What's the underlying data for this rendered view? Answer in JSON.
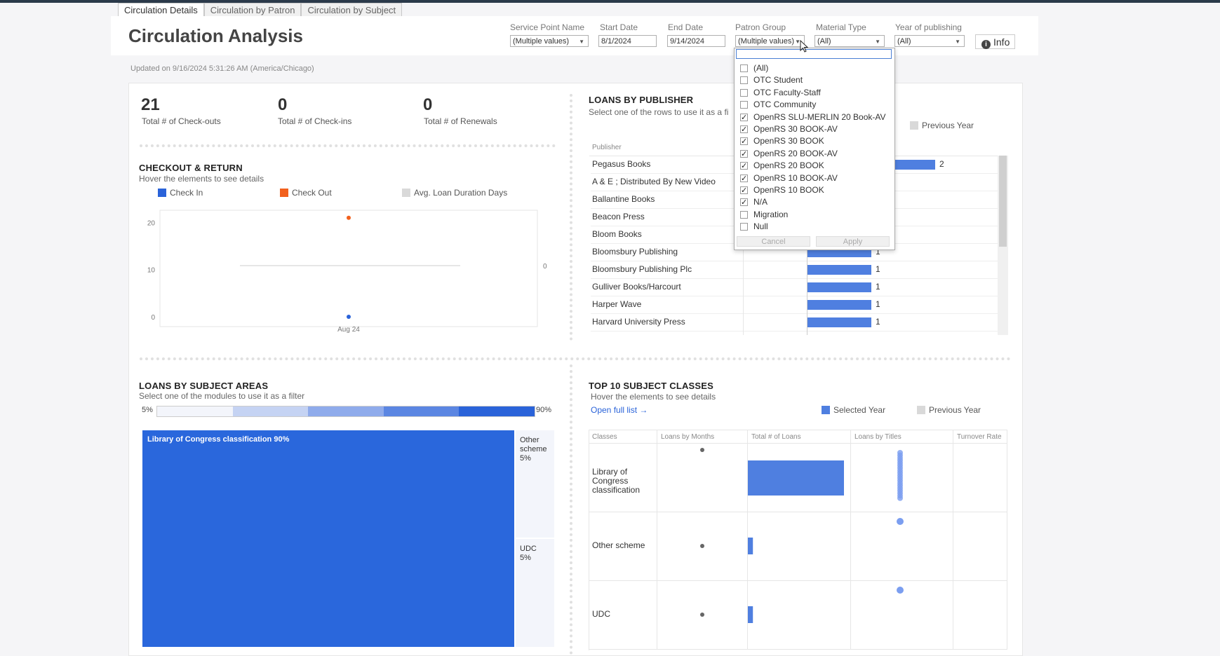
{
  "tabs": [
    "Circulation Details",
    "Circulation by Patron",
    "Circulation by Subject"
  ],
  "title": "Circulation Analysis",
  "filters": [
    {
      "label": "Service Point Name",
      "value": "(Multiple values)",
      "dropdown": true
    },
    {
      "label": "Start Date",
      "value": "8/1/2024",
      "dropdown": false
    },
    {
      "label": "End Date",
      "value": "9/14/2024",
      "dropdown": false
    },
    {
      "label": "Patron Group",
      "value": "(Multiple values)",
      "dropdown": true
    },
    {
      "label": "Material Type",
      "value": "(All)",
      "dropdown": true
    },
    {
      "label": "Year of publishing",
      "value": "(All)",
      "dropdown": true
    }
  ],
  "info_label": "Info",
  "updated": "Updated on 9/16/2024 5:31:26 AM (America/Chicago)",
  "kpis": [
    {
      "value": "21",
      "label": "Total # of Check-outs"
    },
    {
      "value": "0",
      "label": "Total # of Check-ins"
    },
    {
      "value": "0",
      "label": "Total # of Renewals"
    }
  ],
  "checkout_return": {
    "title": "CHECKOUT & RETURN",
    "subtitle": "Hover the elements to see details",
    "legend": [
      {
        "name": "Check In",
        "color": "#2a63d9"
      },
      {
        "name": "Check Out",
        "color": "#f2601d"
      },
      {
        "name": "Avg. Loan Duration Days",
        "color": "#d9d9d9"
      }
    ],
    "right_axis_label": "0"
  },
  "publisher": {
    "title": "LOANS BY PUBLISHER",
    "subtitle": "Select one of the rows to use it as a fi",
    "legend_prev": "Previous Year",
    "col_header": "Publisher"
  },
  "patron_dropdown": {
    "items": [
      {
        "label": "(All)",
        "checked": false
      },
      {
        "label": "OTC Student",
        "checked": false
      },
      {
        "label": "OTC Faculty-Staff",
        "checked": false
      },
      {
        "label": "OTC Community",
        "checked": false
      },
      {
        "label": "OpenRS SLU-MERLIN 20 Book-AV",
        "checked": true
      },
      {
        "label": "OpenRS 30 BOOK-AV",
        "checked": true
      },
      {
        "label": "OpenRS 30 BOOK",
        "checked": true
      },
      {
        "label": "OpenRS 20 BOOK-AV",
        "checked": true
      },
      {
        "label": "OpenRS 20 BOOK",
        "checked": true
      },
      {
        "label": "OpenRS 10 BOOK-AV",
        "checked": true
      },
      {
        "label": "OpenRS 10 BOOK",
        "checked": true
      },
      {
        "label": "N/A",
        "checked": true
      },
      {
        "label": "Migration",
        "checked": false
      },
      {
        "label": "Null",
        "checked": false
      }
    ],
    "cancel": "Cancel",
    "apply": "Apply"
  },
  "subject_areas": {
    "title": "LOANS BY SUBJECT AREAS",
    "subtitle": "Select one of the modules to use it as a filter",
    "scale_min": "5%",
    "scale_max": "90%",
    "main_label": "Library of Congress classification 90%",
    "other_label_1": "Other",
    "other_label_2": "scheme",
    "other_pct": "5%",
    "udc_label": "UDC",
    "udc_pct": "5%"
  },
  "top10": {
    "title": "TOP 10 SUBJECT CLASSES",
    "subtitle": "Hover the elements to see details",
    "open_link": "Open full list →",
    "legend_selected": "Selected Year",
    "legend_prev": "Previous Year",
    "headers": [
      "Classes",
      "Loans by Months",
      "Total # of Loans",
      "Loans by Titles",
      "Turnover Rate"
    ],
    "rows": [
      {
        "label": "Library of Congress classification",
        "lines": [
          "Library of",
          "Congress",
          "classification"
        ]
      },
      {
        "label": "Other scheme",
        "lines": [
          "Other scheme"
        ]
      },
      {
        "label": "UDC",
        "lines": [
          "UDC"
        ]
      }
    ]
  },
  "chart_data": [
    {
      "type": "scatter",
      "title": "CHECKOUT & RETURN",
      "x": [
        "Aug 24"
      ],
      "series": [
        {
          "name": "Check Out",
          "values": [
            21
          ]
        },
        {
          "name": "Check In",
          "values": [
            0
          ]
        },
        {
          "name": "Avg. Loan Duration Days",
          "values": [
            0
          ]
        }
      ],
      "y_ticks": [
        "0",
        "10",
        "20"
      ],
      "ylim": [
        0,
        22
      ]
    },
    {
      "type": "bar",
      "title": "LOANS BY PUBLISHER",
      "categories": [
        "Pegasus Books",
        "A & E ; Distributed By New Video",
        "Ballantine Books",
        "Beacon Press",
        "Bloom Books",
        "Bloomsbury Publishing",
        "Bloomsbury Publishing Plc",
        "Gulliver Books/Harcourt",
        "Harper Wave",
        "Harvard University Press"
      ],
      "values": [
        2,
        null,
        null,
        null,
        null,
        1,
        1,
        1,
        1,
        1
      ],
      "value_labels": [
        "2",
        "",
        "",
        "",
        "",
        "1",
        "1",
        "1",
        "1",
        "1"
      ]
    },
    {
      "type": "bar",
      "title": "TOP 10 SUBJECT CLASSES",
      "categories": [
        "Library of Congress classification",
        "Other scheme",
        "UDC"
      ],
      "values": [
        19,
        1,
        1
      ]
    }
  ]
}
